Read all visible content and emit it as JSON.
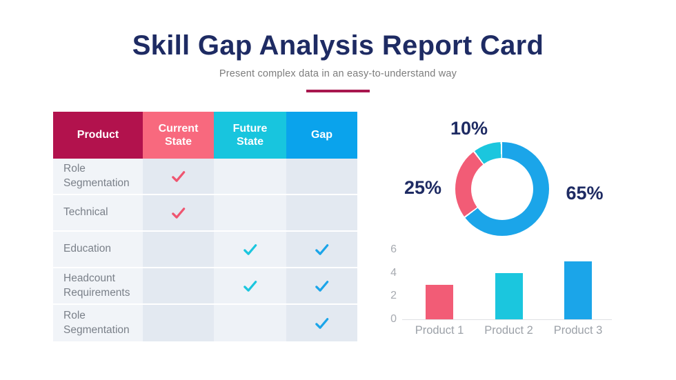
{
  "palette": {
    "navy": "#1E2B63",
    "crimson": "#B2124D",
    "pink": "#F8697E",
    "cyan": "#18C5DE",
    "blue": "#0AA3EC"
  },
  "header": {
    "title": "Skill Gap Analysis Report Card",
    "subtitle": "Present complex data in an easy-to-understand way",
    "accent_color": "#A8174E"
  },
  "table": {
    "columns": [
      {
        "label": "Product",
        "color": "#B2124D"
      },
      {
        "label": "Current State",
        "color": "#F8697E"
      },
      {
        "label": "Future State",
        "color": "#18C5DE"
      },
      {
        "label": "Gap",
        "color": "#0AA3EC"
      }
    ],
    "check_colors": {
      "current": "#EF5570",
      "future": "#1BC6DE",
      "gap": "#1BA5E9"
    },
    "rows": [
      {
        "product": "Role Segmentation",
        "current": true,
        "future": false,
        "gap": false
      },
      {
        "product": "Technical",
        "current": true,
        "future": false,
        "gap": false
      },
      {
        "product": "Education",
        "current": false,
        "future": true,
        "gap": true
      },
      {
        "product": "Headcount Requirements",
        "current": false,
        "future": true,
        "gap": true
      },
      {
        "product": "Role Segmentation",
        "current": false,
        "future": false,
        "gap": true
      }
    ]
  },
  "chart_data": [
    {
      "type": "pie",
      "subtype": "donut",
      "title": "",
      "labels": [
        "65%",
        "25%",
        "10%"
      ],
      "values": [
        65,
        25,
        10
      ],
      "colors": [
        "#1BA5E9",
        "#F25C76",
        "#1BC6DE"
      ],
      "start_angle": "top",
      "direction": "clockwise",
      "legend_position": "labels outside ring"
    },
    {
      "type": "bar",
      "title": "",
      "categories": [
        "Product 1",
        "Product 2",
        "Product 3"
      ],
      "values": [
        3,
        4,
        5
      ],
      "colors": [
        "#F25C76",
        "#1BC6DE",
        "#1BA5E9"
      ],
      "xlabel": "",
      "ylabel": "",
      "yticks": [
        0,
        2,
        4,
        6
      ],
      "ylim": [
        0,
        6
      ],
      "grid": false,
      "legend_position": "none"
    }
  ]
}
